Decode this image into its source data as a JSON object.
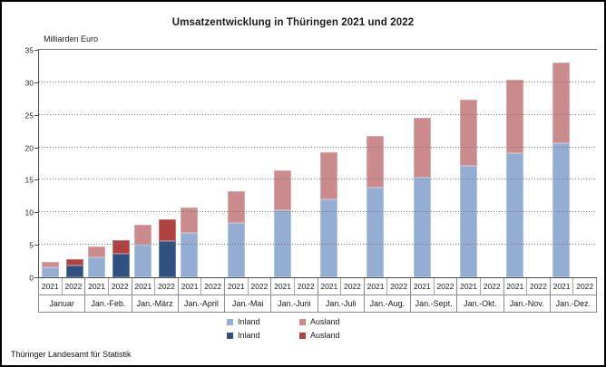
{
  "title": "Umsatzentwicklung in Thüringen 2021 und 2022",
  "y_axis_label": "Milliarden Euro",
  "source": "Thüringer Landesamt für Statistik",
  "colors": {
    "inland_2021": "#93AED2",
    "ausland_2021": "#CB8A8B",
    "inland_2022": "#2F5181",
    "ausland_2022": "#B0423F",
    "axis": "#4d4d4d",
    "grid": "#737373",
    "box_border": "#8c8c8c"
  },
  "legend": {
    "rows": [
      [
        {
          "label": "Inland",
          "color_key": "inland_2021"
        },
        {
          "label": "Ausland",
          "color_key": "ausland_2021"
        }
      ],
      [
        {
          "label": "Inland",
          "color_key": "inland_2022"
        },
        {
          "label": "Ausland",
          "color_key": "ausland_2022"
        }
      ]
    ]
  },
  "chart_data": {
    "type": "bar",
    "stacked": true,
    "title": "Umsatzentwicklung in Thüringen 2021 und 2022",
    "ylabel": "Milliarden Euro",
    "ylim": [
      0,
      35
    ],
    "yticks": [
      0,
      5,
      10,
      15,
      20,
      25,
      30,
      35
    ],
    "grid": "horizontal-dotted",
    "legend_position": "bottom",
    "categories": [
      "Januar",
      "Jan.-Feb.",
      "Jan.-März",
      "Jan.-April",
      "Jan.-Mai",
      "Jan.-Juni",
      "Jan.-Juli",
      "Jan.-Aug.",
      "Jan.-Sept.",
      "Jan.-Okt.",
      "Jan.-Nov.",
      "Jan.-Dez."
    ],
    "sub_categories": [
      "2021",
      "2022"
    ],
    "series": [
      {
        "name": "Inland",
        "year": "2021",
        "color_key": "inland_2021",
        "values": [
          1.5,
          3.1,
          5.0,
          6.8,
          8.4,
          10.3,
          12.0,
          13.8,
          15.4,
          17.2,
          19.1,
          20.7
        ]
      },
      {
        "name": "Ausland",
        "year": "2021",
        "color_key": "ausland_2021",
        "values": [
          0.8,
          1.7,
          3.0,
          3.9,
          4.9,
          6.1,
          7.2,
          8.0,
          9.2,
          10.2,
          11.3,
          12.4
        ]
      },
      {
        "name": "Inland",
        "year": "2022",
        "color_key": "inland_2022",
        "values": [
          1.8,
          3.6,
          5.6,
          null,
          null,
          null,
          null,
          null,
          null,
          null,
          null,
          null
        ]
      },
      {
        "name": "Ausland",
        "year": "2022",
        "color_key": "ausland_2022",
        "values": [
          1.0,
          2.1,
          3.3,
          null,
          null,
          null,
          null,
          null,
          null,
          null,
          null,
          null
        ]
      }
    ]
  }
}
